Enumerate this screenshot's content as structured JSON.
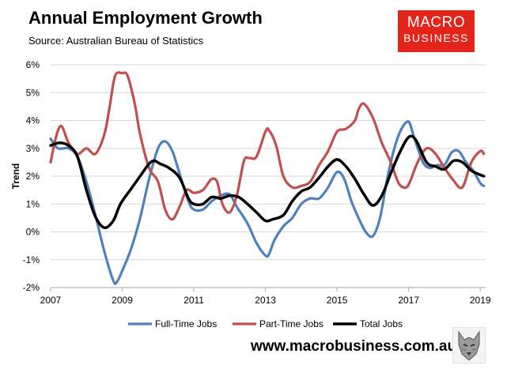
{
  "header": {
    "title": "Annual Employment Growth",
    "subtitle": "Source: Australian Bureau of Statistics"
  },
  "logo": {
    "line1": "MACRO",
    "line2": "BUSINESS",
    "color": "#e1251b"
  },
  "footer": {
    "website": "www.macrobusiness.com.au"
  },
  "chart_data": {
    "type": "line",
    "title": "Annual Employment Growth",
    "ylabel": "Trend",
    "xlabel": "",
    "xlim": [
      2007,
      2019.15
    ],
    "ylim": [
      -2,
      6
    ],
    "yticks": [
      -2,
      -1,
      0,
      1,
      2,
      3,
      4,
      5,
      6
    ],
    "ytick_labels": [
      "-2%",
      "-1%",
      "0%",
      "1%",
      "2%",
      "3%",
      "4%",
      "5%",
      "6%"
    ],
    "xticks": [
      2007,
      2009,
      2011,
      2013,
      2015,
      2017,
      2019
    ],
    "xtick_labels": [
      "2007",
      "2009",
      "2011",
      "2013",
      "2015",
      "2017",
      "2019"
    ],
    "grid": "horizontal",
    "legend": "bottom",
    "series": [
      {
        "name": "Full-Time Jobs",
        "color": "#4f81bd",
        "x": [
          2007.0,
          2007.2,
          2007.5,
          2007.75,
          2008.0,
          2008.25,
          2008.5,
          2008.75,
          2008.85,
          2009.0,
          2009.25,
          2009.5,
          2009.75,
          2010.0,
          2010.2,
          2010.4,
          2010.6,
          2010.85,
          2011.0,
          2011.25,
          2011.5,
          2011.75,
          2012.0,
          2012.2,
          2012.5,
          2012.75,
          2013.0,
          2013.1,
          2013.25,
          2013.5,
          2013.75,
          2014.0,
          2014.25,
          2014.5,
          2014.75,
          2015.0,
          2015.2,
          2015.4,
          2015.6,
          2015.8,
          2016.0,
          2016.2,
          2016.4,
          2016.6,
          2016.8,
          2017.0,
          2017.15,
          2017.4,
          2017.6,
          2017.8,
          2018.0,
          2018.2,
          2018.4,
          2018.6,
          2018.8,
          2019.0,
          2019.1
        ],
        "values": [
          3.35,
          3.0,
          3.0,
          2.7,
          1.8,
          0.6,
          -0.7,
          -1.75,
          -1.8,
          -1.4,
          -0.6,
          0.5,
          1.9,
          3.0,
          3.25,
          2.9,
          2.1,
          1.1,
          0.8,
          0.8,
          1.1,
          1.3,
          1.35,
          0.9,
          0.3,
          -0.4,
          -0.85,
          -0.8,
          -0.3,
          0.2,
          0.5,
          1.0,
          1.2,
          1.2,
          1.6,
          2.15,
          1.9,
          1.1,
          0.5,
          0.0,
          -0.15,
          0.5,
          1.9,
          3.0,
          3.7,
          3.95,
          3.4,
          2.5,
          2.3,
          2.4,
          2.4,
          2.85,
          2.9,
          2.5,
          2.2,
          1.75,
          1.65
        ]
      },
      {
        "name": "Part-Time Jobs",
        "color": "#c0504d",
        "x": [
          2007.0,
          2007.15,
          2007.3,
          2007.5,
          2007.75,
          2008.0,
          2008.25,
          2008.5,
          2008.65,
          2008.8,
          2009.0,
          2009.15,
          2009.35,
          2009.5,
          2009.75,
          2010.0,
          2010.2,
          2010.4,
          2010.6,
          2010.8,
          2011.0,
          2011.25,
          2011.4,
          2011.5,
          2011.65,
          2011.8,
          2012.0,
          2012.2,
          2012.4,
          2012.55,
          2012.75,
          2013.0,
          2013.1,
          2013.3,
          2013.5,
          2013.75,
          2014.0,
          2014.25,
          2014.5,
          2014.75,
          2015.0,
          2015.25,
          2015.5,
          2015.6,
          2015.75,
          2016.0,
          2016.25,
          2016.5,
          2016.7,
          2016.85,
          2017.0,
          2017.25,
          2017.5,
          2017.75,
          2018.0,
          2018.25,
          2018.5,
          2018.75,
          2019.0,
          2019.1
        ],
        "values": [
          2.5,
          3.4,
          3.8,
          3.2,
          2.8,
          3.0,
          2.8,
          3.5,
          4.5,
          5.6,
          5.7,
          5.6,
          4.6,
          3.5,
          2.3,
          1.8,
          0.8,
          0.45,
          0.9,
          1.5,
          1.4,
          1.5,
          1.75,
          1.9,
          1.8,
          1.0,
          0.7,
          1.3,
          2.55,
          2.65,
          2.7,
          3.6,
          3.65,
          3.1,
          2.0,
          1.6,
          1.65,
          1.8,
          2.4,
          2.9,
          3.6,
          3.7,
          4.0,
          4.4,
          4.6,
          4.1,
          3.2,
          2.5,
          1.8,
          1.6,
          1.7,
          2.5,
          3.0,
          2.8,
          2.3,
          1.85,
          1.6,
          2.5,
          2.9,
          2.8
        ]
      },
      {
        "name": "Total Jobs",
        "color": "#000000",
        "x": [
          2007.0,
          2007.25,
          2007.5,
          2007.75,
          2008.0,
          2008.25,
          2008.5,
          2008.75,
          2008.95,
          2009.25,
          2009.5,
          2009.75,
          2009.9,
          2010.05,
          2010.3,
          2010.6,
          2010.85,
          2011.0,
          2011.25,
          2011.5,
          2011.75,
          2012.0,
          2012.25,
          2012.5,
          2012.75,
          2013.0,
          2013.2,
          2013.5,
          2013.75,
          2014.0,
          2014.25,
          2014.5,
          2014.75,
          2015.0,
          2015.25,
          2015.5,
          2015.75,
          2016.0,
          2016.25,
          2016.5,
          2016.75,
          2017.0,
          2017.2,
          2017.5,
          2017.75,
          2018.0,
          2018.25,
          2018.5,
          2018.75,
          2019.0,
          2019.1
        ],
        "values": [
          3.1,
          3.2,
          3.1,
          2.7,
          1.5,
          0.55,
          0.15,
          0.4,
          1.0,
          1.55,
          2.0,
          2.45,
          2.55,
          2.45,
          2.3,
          1.95,
          1.2,
          1.0,
          1.0,
          1.25,
          1.2,
          1.3,
          1.25,
          1.0,
          0.7,
          0.4,
          0.45,
          0.6,
          1.1,
          1.45,
          1.6,
          1.95,
          2.35,
          2.6,
          2.35,
          1.9,
          1.35,
          0.95,
          1.3,
          2.1,
          2.85,
          3.4,
          3.3,
          2.5,
          2.35,
          2.25,
          2.55,
          2.5,
          2.2,
          2.05,
          2.0
        ]
      }
    ]
  }
}
